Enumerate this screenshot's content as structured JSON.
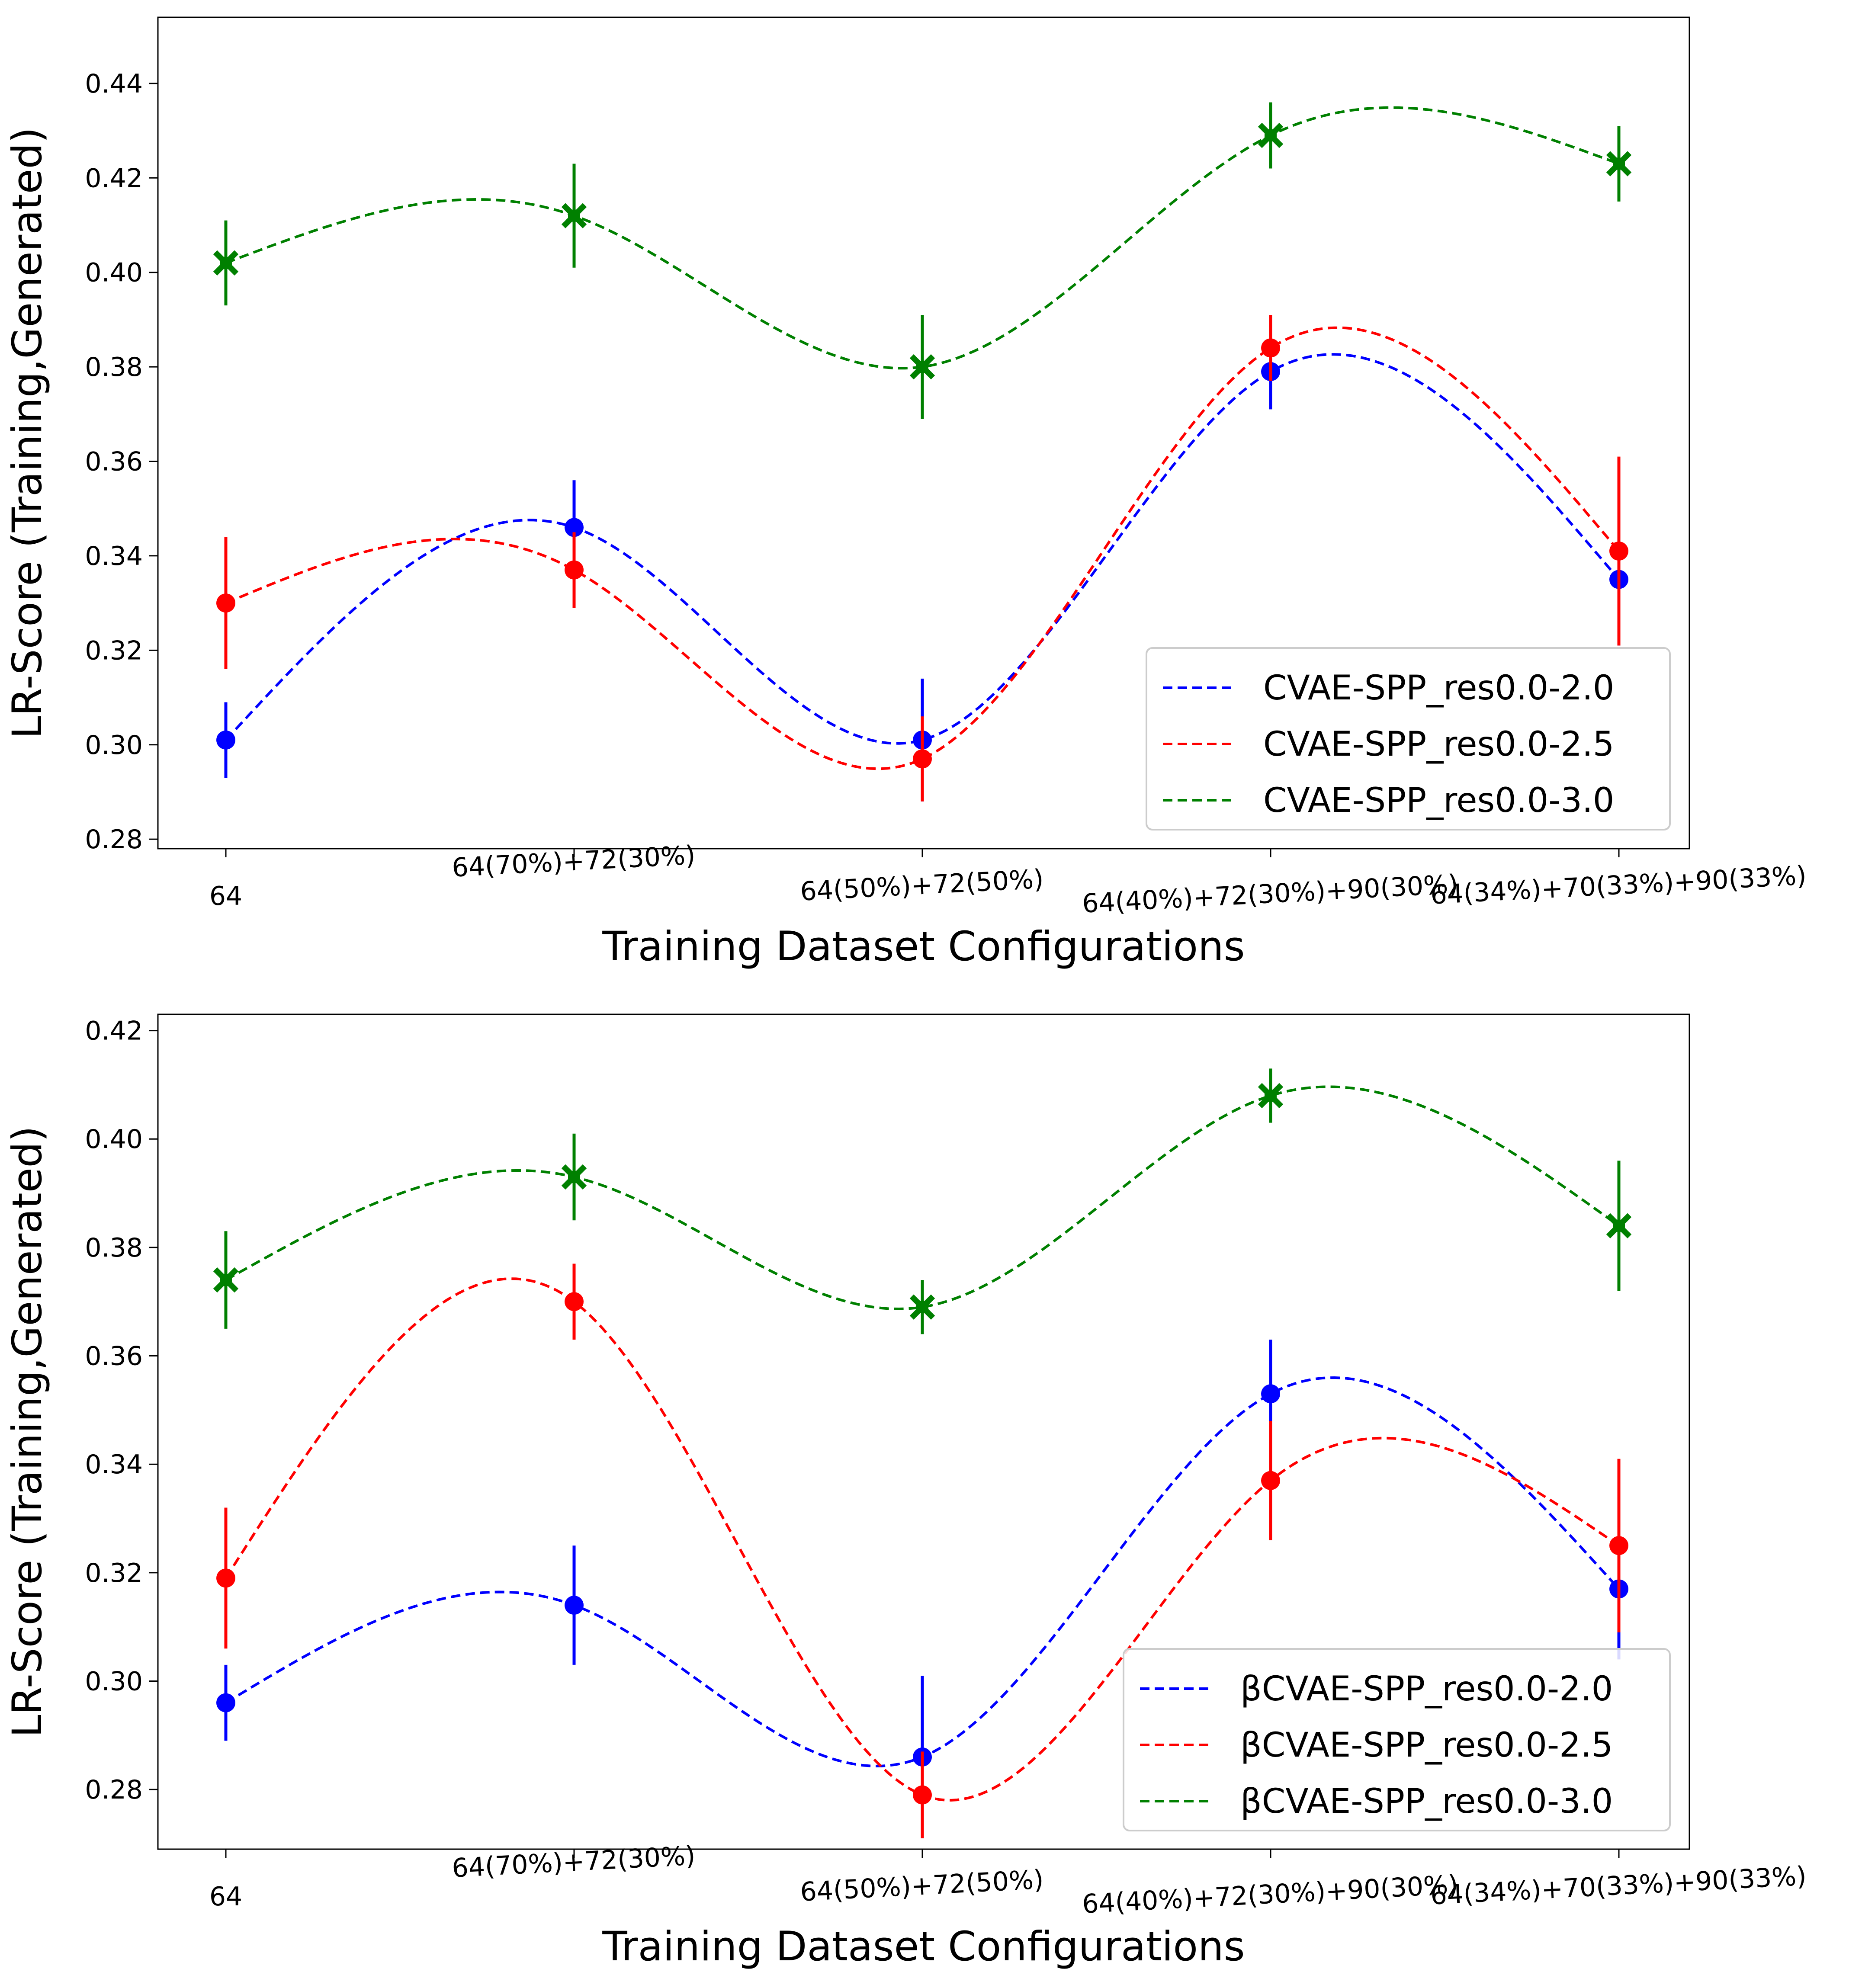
{
  "chart_data": [
    {
      "type": "line",
      "title": "",
      "xlabel": "Training Dataset Configurations",
      "ylabel": "LR-Score (Training,Generated)",
      "categories": [
        "64",
        "64(70%)+72(30%)",
        "64(50%)+72(50%)",
        "64(40%)+72(30%)+90(30%)",
        "64(34%)+70(33%)+90(33%)"
      ],
      "ylim": [
        0.278,
        0.454
      ],
      "yticks": [
        "0.28",
        "0.30",
        "0.32",
        "0.34",
        "0.36",
        "0.38",
        "0.40",
        "0.42",
        "0.44"
      ],
      "legend_position": "lower-right",
      "series": [
        {
          "name": "CVAE-SPP_res0.0-2.0",
          "color": "#0000ff",
          "marker": "circle",
          "values": [
            0.301,
            0.346,
            0.301,
            0.379,
            0.335
          ],
          "errors": [
            0.008,
            0.01,
            0.013,
            0.008,
            0.014
          ]
        },
        {
          "name": "CVAE-SPP_res0.0-2.5",
          "color": "#ff0000",
          "marker": "circle",
          "values": [
            0.33,
            0.337,
            0.297,
            0.384,
            0.341
          ],
          "errors": [
            0.014,
            0.008,
            0.009,
            0.007,
            0.02
          ]
        },
        {
          "name": "CVAE-SPP_res0.0-3.0",
          "color": "#008000",
          "marker": "x",
          "values": [
            0.402,
            0.412,
            0.38,
            0.429,
            0.423
          ],
          "errors": [
            0.009,
            0.011,
            0.011,
            0.007,
            0.008
          ]
        }
      ]
    },
    {
      "type": "line",
      "title": "",
      "xlabel": "Training Dataset Configurations",
      "ylabel": "LR-Score (Training,Generated)",
      "categories": [
        "64",
        "64(70%)+72(30%)",
        "64(50%)+72(50%)",
        "64(40%)+72(30%)+90(30%)",
        "64(34%)+70(33%)+90(33%)"
      ],
      "ylim": [
        0.269,
        0.423
      ],
      "yticks": [
        "0.28",
        "0.30",
        "0.32",
        "0.34",
        "0.36",
        "0.38",
        "0.40",
        "0.42"
      ],
      "legend_position": "lower-right",
      "series": [
        {
          "name": "βCVAE-SPP_res0.0-2.0",
          "color": "#0000ff",
          "marker": "circle",
          "values": [
            0.296,
            0.314,
            0.286,
            0.353,
            0.317
          ],
          "errors": [
            0.007,
            0.011,
            0.015,
            0.01,
            0.013
          ]
        },
        {
          "name": "βCVAE-SPP_res0.0-2.5",
          "color": "#ff0000",
          "marker": "circle",
          "values": [
            0.319,
            0.37,
            0.279,
            0.337,
            0.325
          ],
          "errors": [
            0.013,
            0.007,
            0.008,
            0.011,
            0.016
          ]
        },
        {
          "name": "βCVAE-SPP_res0.0-3.0",
          "color": "#008000",
          "marker": "x",
          "values": [
            0.374,
            0.393,
            0.369,
            0.408,
            0.384
          ],
          "errors": [
            0.009,
            0.008,
            0.005,
            0.005,
            0.012
          ]
        }
      ]
    }
  ]
}
